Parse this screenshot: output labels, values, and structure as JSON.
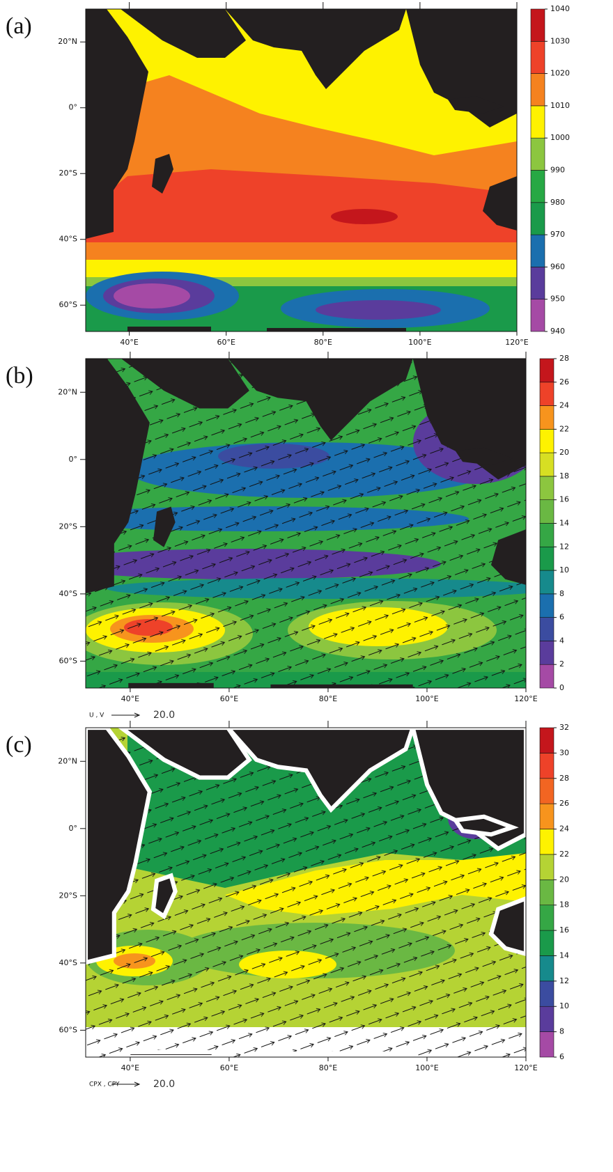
{
  "chart_data": [
    {
      "type": "contour-map",
      "panel_label": "(a)",
      "xlim": [
        31,
        120
      ],
      "ylim": [
        -68,
        30
      ],
      "xticks": [
        {
          "value": 40,
          "label": "40°E"
        },
        {
          "value": 60,
          "label": "60°E"
        },
        {
          "value": 80,
          "label": "80°E"
        },
        {
          "value": 100,
          "label": "100°E"
        },
        {
          "value": 120,
          "label": "120°E"
        }
      ],
      "yticks": [
        {
          "value": 20,
          "label": "20°N"
        },
        {
          "value": 0,
          "label": "0°"
        },
        {
          "value": -20,
          "label": "20°S"
        },
        {
          "value": -40,
          "label": "40°S"
        },
        {
          "value": -60,
          "label": "60°S"
        }
      ],
      "colorbar": {
        "ticks": [
          940,
          950,
          960,
          970,
          980,
          990,
          1000,
          1010,
          1020,
          1030,
          1040
        ],
        "colors": [
          "#a54aa5",
          "#5a3c9c",
          "#1b6fae",
          "#1a9a4a",
          "#27a844",
          "#8cc63f",
          "#fef200",
          "#f5821f",
          "#ee4229",
          "#c4161c"
        ]
      }
    },
    {
      "type": "contour-map",
      "panel_label": "(b)",
      "xlim": [
        31,
        120
      ],
      "ylim": [
        -68,
        30
      ],
      "xticks": [
        {
          "value": 40,
          "label": "40°E"
        },
        {
          "value": 60,
          "label": "60°E"
        },
        {
          "value": 80,
          "label": "80°E"
        },
        {
          "value": 100,
          "label": "100°E"
        },
        {
          "value": 120,
          "label": "120°E"
        }
      ],
      "yticks": [
        {
          "value": 20,
          "label": "20°N"
        },
        {
          "value": 0,
          "label": "0°"
        },
        {
          "value": -20,
          "label": "20°S"
        },
        {
          "value": -40,
          "label": "40°S"
        },
        {
          "value": -60,
          "label": "60°S"
        }
      ],
      "colorbar": {
        "ticks": [
          0,
          2,
          4,
          6,
          8,
          10,
          12,
          14,
          16,
          18,
          20,
          22,
          24,
          26,
          28
        ],
        "colors": [
          "#a54aa5",
          "#5a3c9c",
          "#3b4ca0",
          "#1b6fae",
          "#168a8c",
          "#1a9a4a",
          "#35a745",
          "#6ab843",
          "#8cc63f",
          "#d7df23",
          "#fef200",
          "#f7941d",
          "#ee4229",
          "#c4161c"
        ]
      },
      "vector_reference": {
        "label": "U , V",
        "magnitude": {
          "value": 20,
          "label": "20.0"
        }
      }
    },
    {
      "type": "contour-map",
      "panel_label": "(c)",
      "xlim": [
        31,
        120
      ],
      "ylim": [
        -68,
        30
      ],
      "xticks": [
        {
          "value": 40,
          "label": "40°E"
        },
        {
          "value": 60,
          "label": "60°E"
        },
        {
          "value": 80,
          "label": "80°E"
        },
        {
          "value": 100,
          "label": "100°E"
        },
        {
          "value": 120,
          "label": "120°E"
        }
      ],
      "yticks": [
        {
          "value": 20,
          "label": "20°N"
        },
        {
          "value": 0,
          "label": "0°"
        },
        {
          "value": -20,
          "label": "20°S"
        },
        {
          "value": -40,
          "label": "40°S"
        },
        {
          "value": -60,
          "label": "60°S"
        }
      ],
      "colorbar": {
        "ticks": [
          6,
          8,
          10,
          12,
          14,
          16,
          18,
          20,
          22,
          24,
          26,
          28,
          30,
          32
        ],
        "colors": [
          "#a54aa5",
          "#5a3c9c",
          "#3b4ca0",
          "#168a8c",
          "#1a9a4a",
          "#35a745",
          "#6ab843",
          "#b5d334",
          "#fef200",
          "#f7941d",
          "#f26522",
          "#ee4229",
          "#c4161c"
        ]
      },
      "vector_reference": {
        "label": "CPX , CPY",
        "magnitude": {
          "value": 20,
          "label": "20.0"
        }
      }
    }
  ]
}
